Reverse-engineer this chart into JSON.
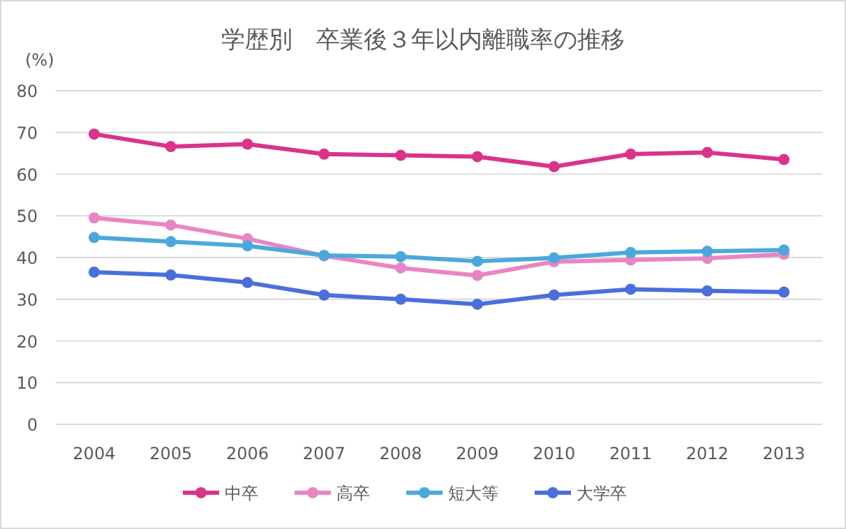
{
  "chart_data": {
    "type": "line",
    "title": "学歴別　卒業後３年以内離職率の推移",
    "ylabel": "(%)",
    "categories": [
      "2004",
      "2005",
      "2006",
      "2007",
      "2008",
      "2009",
      "2010",
      "2011",
      "2012",
      "2013"
    ],
    "series": [
      {
        "name": "中卒",
        "color": "#d9338a",
        "values": [
          69.6,
          66.6,
          67.2,
          64.8,
          64.5,
          64.2,
          61.8,
          64.8,
          65.2,
          63.5
        ]
      },
      {
        "name": "高卒",
        "color": "#e985c2",
        "values": [
          49.5,
          47.8,
          44.5,
          40.4,
          37.5,
          35.7,
          39.0,
          39.4,
          39.8,
          40.8
        ]
      },
      {
        "name": "短大等",
        "color": "#4ba8dc",
        "values": [
          44.8,
          43.8,
          42.8,
          40.5,
          40.2,
          39.1,
          39.9,
          41.2,
          41.5,
          41.8
        ]
      },
      {
        "name": "大学卒",
        "color": "#4a6fdc",
        "values": [
          36.5,
          35.8,
          34.0,
          31.0,
          30.0,
          28.8,
          31.0,
          32.4,
          32.0,
          31.7
        ]
      }
    ],
    "ylim": [
      0,
      80
    ],
    "yticks": [
      0,
      10,
      20,
      30,
      40,
      50,
      60,
      70,
      80
    ],
    "grid": "y",
    "legend": "bottom",
    "marker": "circle",
    "line_style": "solid"
  }
}
